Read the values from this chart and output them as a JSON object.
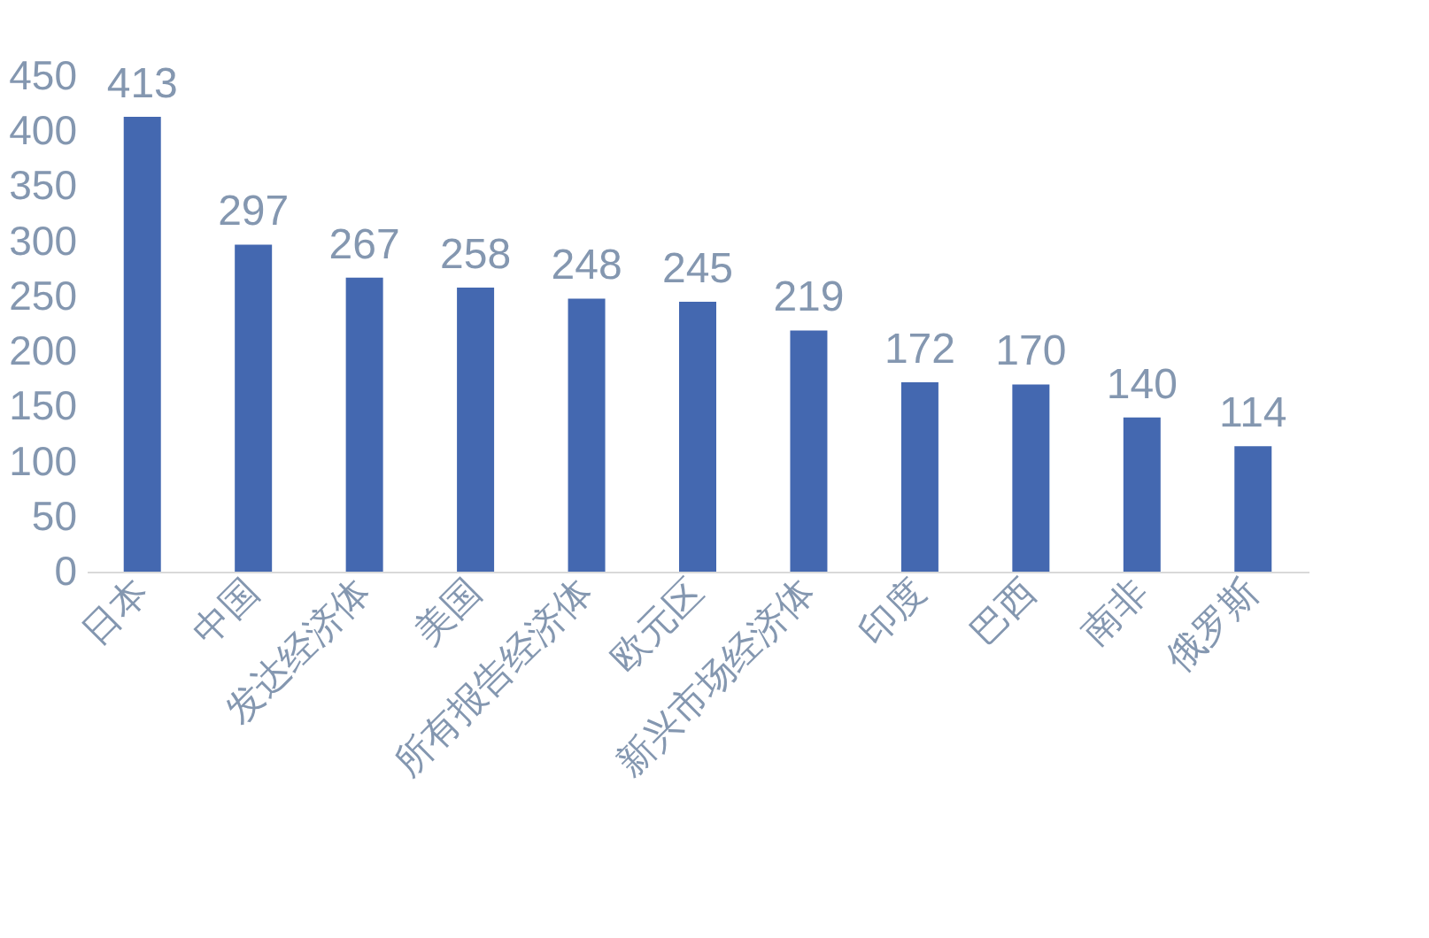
{
  "chart_data": {
    "type": "bar",
    "categories": [
      "日本",
      "中国",
      "发达经济体",
      "美国",
      "所有报告经济体",
      "欧元区",
      "新兴市场经济体",
      "印度",
      "巴西",
      "南非",
      "俄罗斯"
    ],
    "values": [
      413,
      297,
      267,
      258,
      248,
      245,
      219,
      172,
      170,
      140,
      114
    ],
    "color": "#4468b0",
    "ylim": [
      0,
      450
    ],
    "yticks": [
      0,
      50,
      100,
      150,
      200,
      250,
      300,
      350,
      400,
      450
    ],
    "grid": false,
    "data_labels": true
  }
}
